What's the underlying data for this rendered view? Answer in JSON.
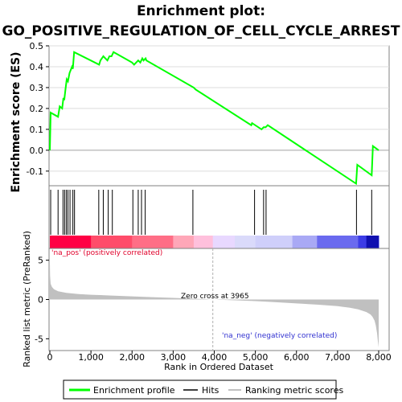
{
  "title_line1": "Enrichment plot:",
  "title_line2": "GO_POSITIVE_REGULATION_OF_CELL_CYCLE_ARREST",
  "colors": {
    "enrichment": "#00ff00",
    "hits": "#000000",
    "ranking": "#c0c0c0",
    "pos_text": "#e0002a",
    "neg_text": "#3030d0"
  },
  "chart_data": [
    {
      "type": "line",
      "panel": "enrichment",
      "ylabel": "Enrichment score (ES)",
      "xlim": [
        0,
        8000
      ],
      "ylim": [
        -0.17,
        0.5
      ],
      "yticks": [
        -0.1,
        0.0,
        0.1,
        0.2,
        0.3,
        0.4,
        0.5
      ],
      "ytick_labels": [
        "-0.1",
        "0.0",
        "0.1",
        "0.2",
        "0.3",
        "0.4",
        "0.5"
      ],
      "grid": true,
      "series": [
        {
          "name": "Enrichment profile",
          "x": [
            0,
            20,
            200,
            240,
            300,
            330,
            350,
            380,
            410,
            440,
            480,
            540,
            560,
            590,
            1200,
            1230,
            1300,
            1400,
            1450,
            1500,
            1550,
            2000,
            2050,
            2150,
            2200,
            2250,
            2280,
            2330,
            2350,
            3500,
            3550,
            4900,
            4920,
            5150,
            5200,
            5250,
            5300,
            7450,
            7480,
            7830,
            7860,
            8000
          ],
          "y": [
            0.0,
            0.18,
            0.16,
            0.21,
            0.2,
            0.25,
            0.24,
            0.29,
            0.34,
            0.33,
            0.37,
            0.4,
            0.39,
            0.47,
            0.41,
            0.43,
            0.45,
            0.43,
            0.45,
            0.45,
            0.47,
            0.42,
            0.41,
            0.43,
            0.42,
            0.44,
            0.43,
            0.44,
            0.43,
            0.3,
            0.29,
            0.12,
            0.13,
            0.1,
            0.11,
            0.11,
            0.12,
            -0.16,
            -0.07,
            -0.12,
            0.02,
            0.0
          ]
        }
      ]
    },
    {
      "type": "bar",
      "panel": "hits",
      "name": "Hits",
      "x": [
        20,
        200,
        320,
        360,
        400,
        440,
        490,
        560,
        600,
        1190,
        1300,
        1420,
        1520,
        2020,
        2150,
        2230,
        2320,
        3480,
        4980,
        5200,
        5260,
        7460,
        7830
      ]
    },
    {
      "type": "area",
      "panel": "ranking",
      "name": "Ranking metric scores",
      "xlabel": "Rank in Ordered Dataset",
      "ylabel": "Ranked list metric (PreRanked)",
      "xlim": [
        0,
        8000
      ],
      "ylim": [
        -6.5,
        6.5
      ],
      "xticks": [
        0,
        1000,
        2000,
        3000,
        4000,
        5000,
        6000,
        7000,
        8000
      ],
      "xtick_labels": [
        "0",
        "1,000",
        "2,000",
        "3,000",
        "4,000",
        "5,000",
        "6,000",
        "7,000",
        "8,000"
      ],
      "yticks": [
        -5,
        0,
        5
      ],
      "ytick_labels": [
        "-5",
        "0",
        "5"
      ],
      "zero_cross": 3965,
      "x": [
        0,
        5,
        20,
        50,
        100,
        200,
        400,
        700,
        1000,
        1500,
        2000,
        2500,
        3000,
        3500,
        3965,
        4500,
        5000,
        5500,
        6000,
        6500,
        7000,
        7300,
        7500,
        7700,
        7800,
        7850,
        7900,
        7930,
        7960,
        7980,
        8000
      ],
      "y": [
        4.8,
        3.0,
        2.0,
        1.6,
        1.3,
        1.05,
        0.85,
        0.7,
        0.6,
        0.5,
        0.4,
        0.3,
        0.2,
        0.1,
        0.0,
        -0.1,
        -0.2,
        -0.35,
        -0.5,
        -0.65,
        -0.85,
        -1.05,
        -1.25,
        -1.6,
        -1.9,
        -2.2,
        -2.7,
        -3.3,
        -4.3,
        -5.3,
        -6.1
      ]
    }
  ],
  "annotations": {
    "pos_label": "'na_pos' (positively correlated)",
    "neg_label": "'na_neg' (negatively correlated)",
    "zero_cross_label": "Zero cross at 3965"
  },
  "legend": {
    "enrichment_label": "Enrichment profile",
    "hits_label": "Hits",
    "ranking_label": "Ranking metric scores"
  }
}
